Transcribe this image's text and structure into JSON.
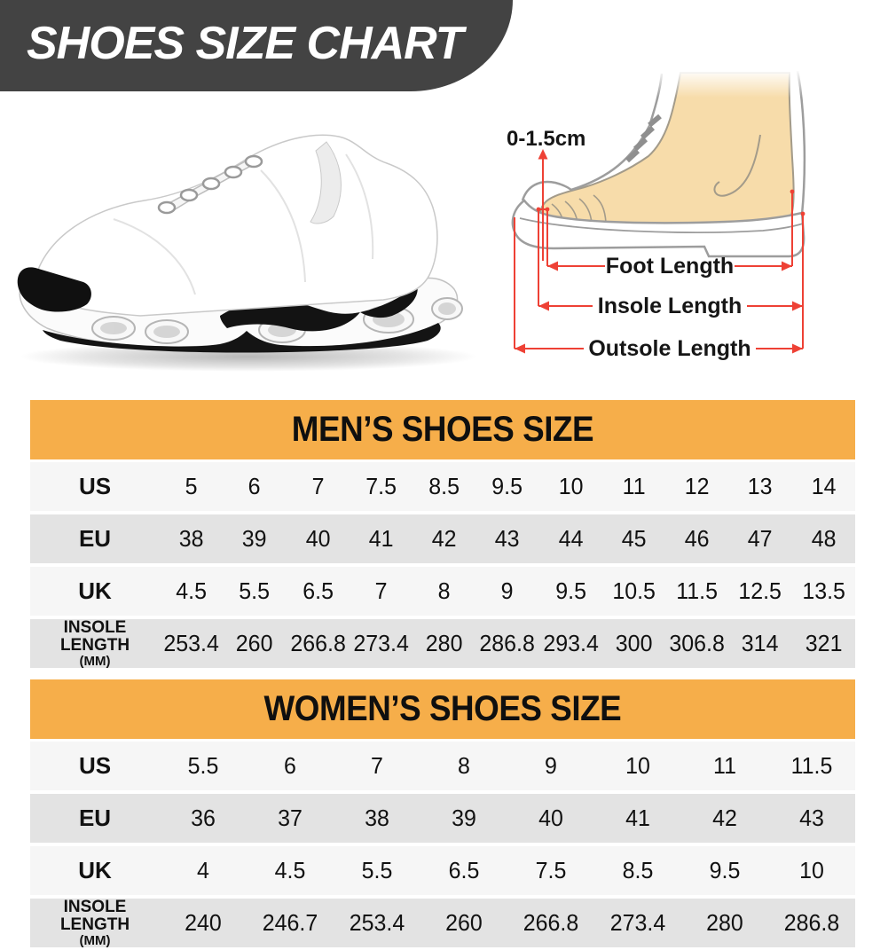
{
  "header": {
    "title": "SHOES SIZE CHART"
  },
  "diagram": {
    "gap_label": "0-1.5cm",
    "foot_length_label": "Foot Length",
    "insole_length_label": "Insole Length",
    "outsole_length_label": "Outsole Length"
  },
  "colors": {
    "banner": "#434343",
    "table_header_orange": "#f6ae4a",
    "row_light": "#f6f6f6",
    "row_dark": "#e3e3e3",
    "arrow_red": "#ee4135",
    "foot_skin": "#f7dcaa",
    "outline_gray": "#9d9d9d"
  },
  "chart_data": [
    {
      "type": "table",
      "title": "MEN’S SHOES SIZE",
      "rows": [
        {
          "label": "US",
          "values": [
            "5",
            "6",
            "7",
            "7.5",
            "8.5",
            "9.5",
            "10",
            "11",
            "12",
            "13",
            "14"
          ]
        },
        {
          "label": "EU",
          "values": [
            "38",
            "39",
            "40",
            "41",
            "42",
            "43",
            "44",
            "45",
            "46",
            "47",
            "48"
          ]
        },
        {
          "label": "UK",
          "values": [
            "4.5",
            "5.5",
            "6.5",
            "7",
            "8",
            "9",
            "9.5",
            "10.5",
            "11.5",
            "12.5",
            "13.5"
          ]
        },
        {
          "label": "INSOLE LENGTH",
          "sublabel": "(MM)",
          "values": [
            "253.4",
            "260",
            "266.8",
            "273.4",
            "280",
            "286.8",
            "293.4",
            "300",
            "306.8",
            "314",
            "321"
          ]
        }
      ]
    },
    {
      "type": "table",
      "title": "WOMEN’S SHOES SIZE",
      "rows": [
        {
          "label": "US",
          "values": [
            "5.5",
            "6",
            "7",
            "8",
            "9",
            "10",
            "11",
            "11.5"
          ]
        },
        {
          "label": "EU",
          "values": [
            "36",
            "37",
            "38",
            "39",
            "40",
            "41",
            "42",
            "43"
          ]
        },
        {
          "label": "UK",
          "values": [
            "4",
            "4.5",
            "5.5",
            "6.5",
            "7.5",
            "8.5",
            "9.5",
            "10"
          ]
        },
        {
          "label": "INSOLE LENGTH",
          "sublabel": "(MM)",
          "values": [
            "240",
            "246.7",
            "253.4",
            "260",
            "266.8",
            "273.4",
            "280",
            "286.8"
          ]
        }
      ]
    }
  ]
}
